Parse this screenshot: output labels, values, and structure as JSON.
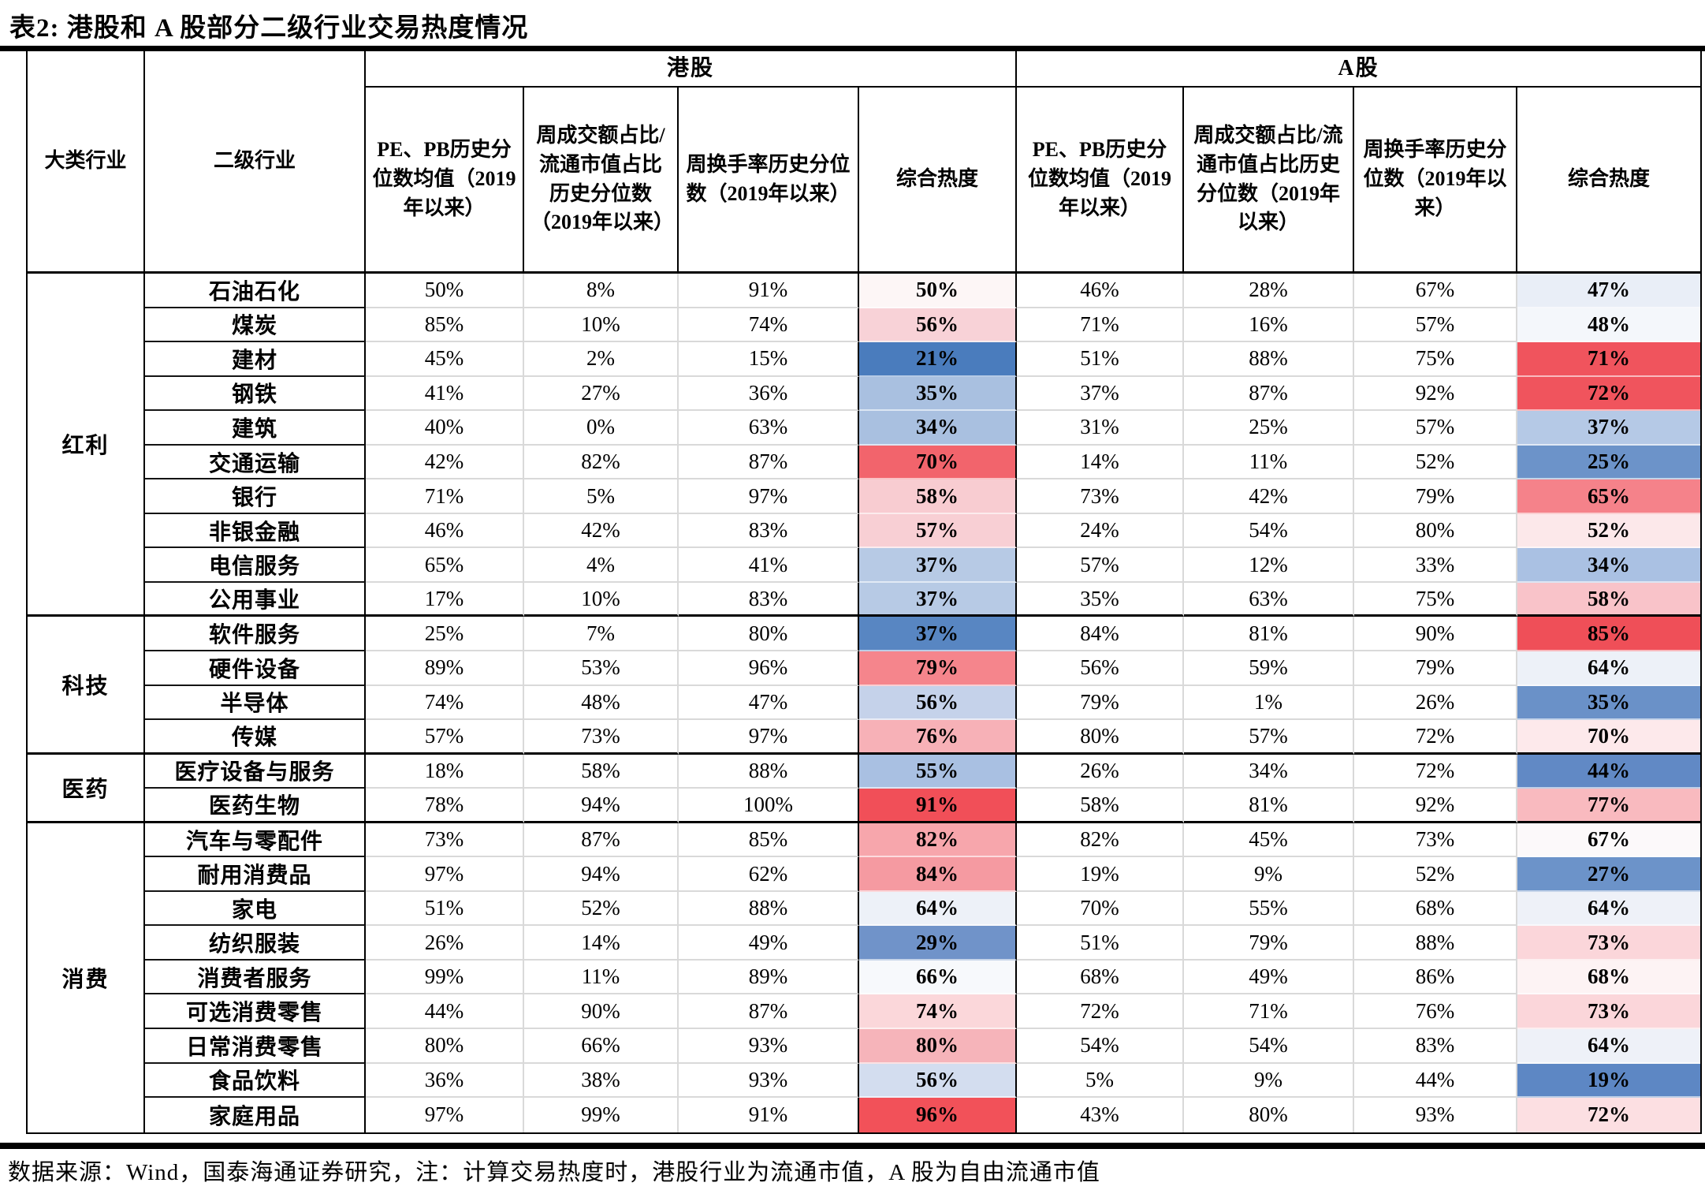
{
  "title": "表2:  港股和 A 股部分二级行业交易热度情况",
  "footer": "数据来源：Wind，国泰海通证券研究，注：计算交易热度时，港股行业为流通市值，A 股为自由流通市值",
  "columns": {
    "category": "大类行业",
    "industry": "二级行业",
    "hk_group": "港股",
    "a_group": "A股",
    "pe_pb": "PE、PB历史分位数均值（2019年以来）",
    "turnover_amount": "周成交额占比/流通市值占比历史分位数（2019年以来）",
    "turnover_rate": "周换手率历史分位数（2019年以来）",
    "composite": "综合热度"
  },
  "groups": [
    {
      "name": "红利",
      "rows": [
        {
          "industry": "石油石化",
          "hk": [
            "50%",
            "8%",
            "91%"
          ],
          "hk_comp": "50%",
          "hk_comp_color": "#fdf6f6",
          "a": [
            "46%",
            "28%",
            "67%"
          ],
          "a_comp": "47%",
          "a_comp_color": "#e9eef7"
        },
        {
          "industry": "煤炭",
          "hk": [
            "85%",
            "10%",
            "74%"
          ],
          "hk_comp": "56%",
          "hk_comp_color": "#f8d2d7",
          "a": [
            "71%",
            "16%",
            "57%"
          ],
          "a_comp": "48%",
          "a_comp_color": "#f4f7fb"
        },
        {
          "industry": "建材",
          "hk": [
            "45%",
            "2%",
            "15%"
          ],
          "hk_comp": "21%",
          "hk_comp_color": "#4a7cbd",
          "a": [
            "51%",
            "88%",
            "75%"
          ],
          "a_comp": "71%",
          "a_comp_color": "#f0545d"
        },
        {
          "industry": "钢铁",
          "hk": [
            "41%",
            "27%",
            "36%"
          ],
          "hk_comp": "35%",
          "hk_comp_color": "#a9c0e0",
          "a": [
            "37%",
            "87%",
            "92%"
          ],
          "a_comp": "72%",
          "a_comp_color": "#f0545d"
        },
        {
          "industry": "建筑",
          "hk": [
            "40%",
            "0%",
            "63%"
          ],
          "hk_comp": "34%",
          "hk_comp_color": "#a9c0e0",
          "a": [
            "31%",
            "25%",
            "57%"
          ],
          "a_comp": "37%",
          "a_comp_color": "#b5c9e6"
        },
        {
          "industry": "交通运输",
          "hk": [
            "42%",
            "82%",
            "87%"
          ],
          "hk_comp": "70%",
          "hk_comp_color": "#f2646c",
          "a": [
            "14%",
            "11%",
            "52%"
          ],
          "a_comp": "25%",
          "a_comp_color": "#6c93c9"
        },
        {
          "industry": "银行",
          "hk": [
            "71%",
            "5%",
            "97%"
          ],
          "hk_comp": "58%",
          "hk_comp_color": "#f8ccd1",
          "a": [
            "73%",
            "42%",
            "79%"
          ],
          "a_comp": "65%",
          "a_comp_color": "#f5828a"
        },
        {
          "industry": "非银金融",
          "hk": [
            "46%",
            "42%",
            "83%"
          ],
          "hk_comp": "57%",
          "hk_comp_color": "#f8cfd4",
          "a": [
            "24%",
            "54%",
            "80%"
          ],
          "a_comp": "52%",
          "a_comp_color": "#fce8ea"
        },
        {
          "industry": "电信服务",
          "hk": [
            "65%",
            "4%",
            "41%"
          ],
          "hk_comp": "37%",
          "hk_comp_color": "#b7cae5",
          "a": [
            "57%",
            "12%",
            "33%"
          ],
          "a_comp": "34%",
          "a_comp_color": "#aac1e3"
        },
        {
          "industry": "公用事业",
          "hk": [
            "17%",
            "10%",
            "83%"
          ],
          "hk_comp": "37%",
          "hk_comp_color": "#b7cae5",
          "a": [
            "35%",
            "63%",
            "75%"
          ],
          "a_comp": "58%",
          "a_comp_color": "#f9c3c9"
        }
      ]
    },
    {
      "name": "科技",
      "rows": [
        {
          "industry": "软件服务",
          "hk": [
            "25%",
            "7%",
            "80%"
          ],
          "hk_comp": "37%",
          "hk_comp_color": "#5886c2",
          "a": [
            "84%",
            "81%",
            "90%"
          ],
          "a_comp": "85%",
          "a_comp_color": "#ef4f58"
        },
        {
          "industry": "硬件设备",
          "hk": [
            "89%",
            "53%",
            "96%"
          ],
          "hk_comp": "79%",
          "hk_comp_color": "#f5858c",
          "a": [
            "56%",
            "59%",
            "79%"
          ],
          "a_comp": "64%",
          "a_comp_color": "#edf1f8"
        },
        {
          "industry": "半导体",
          "hk": [
            "74%",
            "48%",
            "47%"
          ],
          "hk_comp": "56%",
          "hk_comp_color": "#c5d2ea",
          "a": [
            "79%",
            "1%",
            "26%"
          ],
          "a_comp": "35%",
          "a_comp_color": "#6a91c8"
        },
        {
          "industry": "传媒",
          "hk": [
            "57%",
            "73%",
            "97%"
          ],
          "hk_comp": "76%",
          "hk_comp_color": "#f7b1b7",
          "a": [
            "80%",
            "57%",
            "72%"
          ],
          "a_comp": "70%",
          "a_comp_color": "#fde9eb"
        }
      ]
    },
    {
      "name": "医药",
      "rows": [
        {
          "industry": "医疗设备与服务",
          "hk": [
            "18%",
            "58%",
            "88%"
          ],
          "hk_comp": "55%",
          "hk_comp_color": "#a9c0e2",
          "a": [
            "26%",
            "34%",
            "72%"
          ],
          "a_comp": "44%",
          "a_comp_color": "#6189c5"
        },
        {
          "industry": "医药生物",
          "hk": [
            "78%",
            "94%",
            "100%"
          ],
          "hk_comp": "91%",
          "hk_comp_color": "#f14f58",
          "a": [
            "58%",
            "81%",
            "92%"
          ],
          "a_comp": "77%",
          "a_comp_color": "#f9babf"
        }
      ]
    },
    {
      "name": "消费",
      "rows": [
        {
          "industry": "汽车与零配件",
          "hk": [
            "73%",
            "87%",
            "85%"
          ],
          "hk_comp": "82%",
          "hk_comp_color": "#f7a6ac",
          "a": [
            "82%",
            "45%",
            "73%"
          ],
          "a_comp": "67%",
          "a_comp_color": "#fcf9fa"
        },
        {
          "industry": "耐用消费品",
          "hk": [
            "97%",
            "94%",
            "62%"
          ],
          "hk_comp": "84%",
          "hk_comp_color": "#f59aa1",
          "a": [
            "19%",
            "9%",
            "52%"
          ],
          "a_comp": "27%",
          "a_comp_color": "#6c93c9"
        },
        {
          "industry": "家电",
          "hk": [
            "51%",
            "52%",
            "88%"
          ],
          "hk_comp": "64%",
          "hk_comp_color": "#edf1f8",
          "a": [
            "70%",
            "55%",
            "68%"
          ],
          "a_comp": "64%",
          "a_comp_color": "#eef1f8"
        },
        {
          "industry": "纺织服装",
          "hk": [
            "26%",
            "14%",
            "49%"
          ],
          "hk_comp": "29%",
          "hk_comp_color": "#7093c9",
          "a": [
            "51%",
            "79%",
            "88%"
          ],
          "a_comp": "73%",
          "a_comp_color": "#fbd6da"
        },
        {
          "industry": "消费者服务",
          "hk": [
            "99%",
            "11%",
            "89%"
          ],
          "hk_comp": "66%",
          "hk_comp_color": "#f7f9fc",
          "a": [
            "68%",
            "49%",
            "86%"
          ],
          "a_comp": "68%",
          "a_comp_color": "#fdf3f4"
        },
        {
          "industry": "可选消费零售",
          "hk": [
            "44%",
            "90%",
            "87%"
          ],
          "hk_comp": "74%",
          "hk_comp_color": "#fbd7da",
          "a": [
            "72%",
            "71%",
            "76%"
          ],
          "a_comp": "73%",
          "a_comp_color": "#fbd6da"
        },
        {
          "industry": "日常消费零售",
          "hk": [
            "80%",
            "66%",
            "93%"
          ],
          "hk_comp": "80%",
          "hk_comp_color": "#f6b4ba",
          "a": [
            "54%",
            "54%",
            "83%"
          ],
          "a_comp": "64%",
          "a_comp_color": "#eef1f8"
        },
        {
          "industry": "食品饮料",
          "hk": [
            "36%",
            "38%",
            "93%"
          ],
          "hk_comp": "56%",
          "hk_comp_color": "#d3ddef",
          "a": [
            "5%",
            "9%",
            "44%"
          ],
          "a_comp": "19%",
          "a_comp_color": "#5d87c4"
        },
        {
          "industry": "家庭用品",
          "hk": [
            "97%",
            "99%",
            "91%"
          ],
          "hk_comp": "96%",
          "hk_comp_color": "#f25159",
          "a": [
            "43%",
            "80%",
            "93%"
          ],
          "a_comp": "72%",
          "a_comp_color": "#fcdfe2"
        }
      ]
    }
  ],
  "colors": {
    "border_black": "#000000",
    "grid_gray": "#d9d9d9",
    "heat_low": "#4a7cbd",
    "heat_mid": "#ffffff",
    "heat_high": "#f14f58"
  }
}
